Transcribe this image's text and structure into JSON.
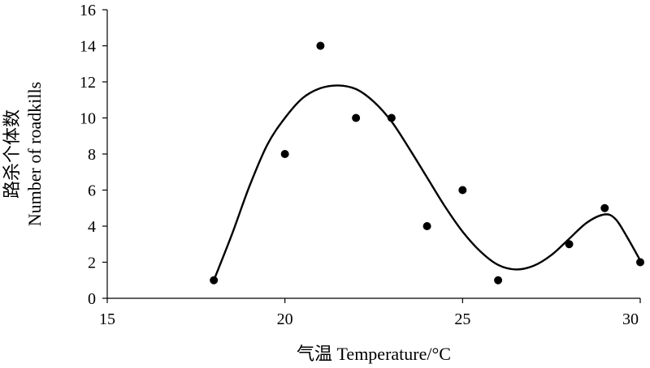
{
  "chart_data": {
    "type": "scatter",
    "title": "",
    "xlabel": "气温 Temperature/°C",
    "ylabel_zh": "路杀个体数",
    "ylabel_en": "Number of roadkills",
    "xlim": [
      15,
      30
    ],
    "ylim": [
      0,
      16
    ],
    "x_ticks": [
      15,
      20,
      25,
      30
    ],
    "y_ticks": [
      0,
      2,
      4,
      6,
      8,
      10,
      12,
      14,
      16
    ],
    "grid": false,
    "legend": "none",
    "points": [
      {
        "x": 18,
        "y": 1
      },
      {
        "x": 20,
        "y": 8
      },
      {
        "x": 21,
        "y": 14
      },
      {
        "x": 22,
        "y": 10
      },
      {
        "x": 23,
        "y": 10
      },
      {
        "x": 24,
        "y": 4
      },
      {
        "x": 25,
        "y": 6
      },
      {
        "x": 26,
        "y": 1
      },
      {
        "x": 28,
        "y": 3
      },
      {
        "x": 29,
        "y": 5
      },
      {
        "x": 30,
        "y": 2
      }
    ],
    "trend_curve": [
      {
        "x": 18,
        "y": 1
      },
      {
        "x": 18.5,
        "y": 3.5
      },
      {
        "x": 19,
        "y": 6.2
      },
      {
        "x": 19.5,
        "y": 8.5
      },
      {
        "x": 20,
        "y": 10.0
      },
      {
        "x": 20.5,
        "y": 11.1
      },
      {
        "x": 21,
        "y": 11.65
      },
      {
        "x": 21.5,
        "y": 11.8
      },
      {
        "x": 22,
        "y": 11.6
      },
      {
        "x": 22.5,
        "y": 10.9
      },
      {
        "x": 23,
        "y": 9.8
      },
      {
        "x": 23.5,
        "y": 8.3
      },
      {
        "x": 24,
        "y": 6.7
      },
      {
        "x": 24.5,
        "y": 5.1
      },
      {
        "x": 25,
        "y": 3.7
      },
      {
        "x": 25.5,
        "y": 2.6
      },
      {
        "x": 26,
        "y": 1.85
      },
      {
        "x": 26.5,
        "y": 1.6
      },
      {
        "x": 27,
        "y": 1.8
      },
      {
        "x": 27.5,
        "y": 2.4
      },
      {
        "x": 28,
        "y": 3.3
      },
      {
        "x": 28.5,
        "y": 4.2
      },
      {
        "x": 29,
        "y": 4.65
      },
      {
        "x": 29.3,
        "y": 4.4
      },
      {
        "x": 29.6,
        "y": 3.5
      },
      {
        "x": 30,
        "y": 2.1
      }
    ],
    "colors": {
      "axis": "#000000",
      "marker": "#000000",
      "curve": "#000000"
    }
  }
}
